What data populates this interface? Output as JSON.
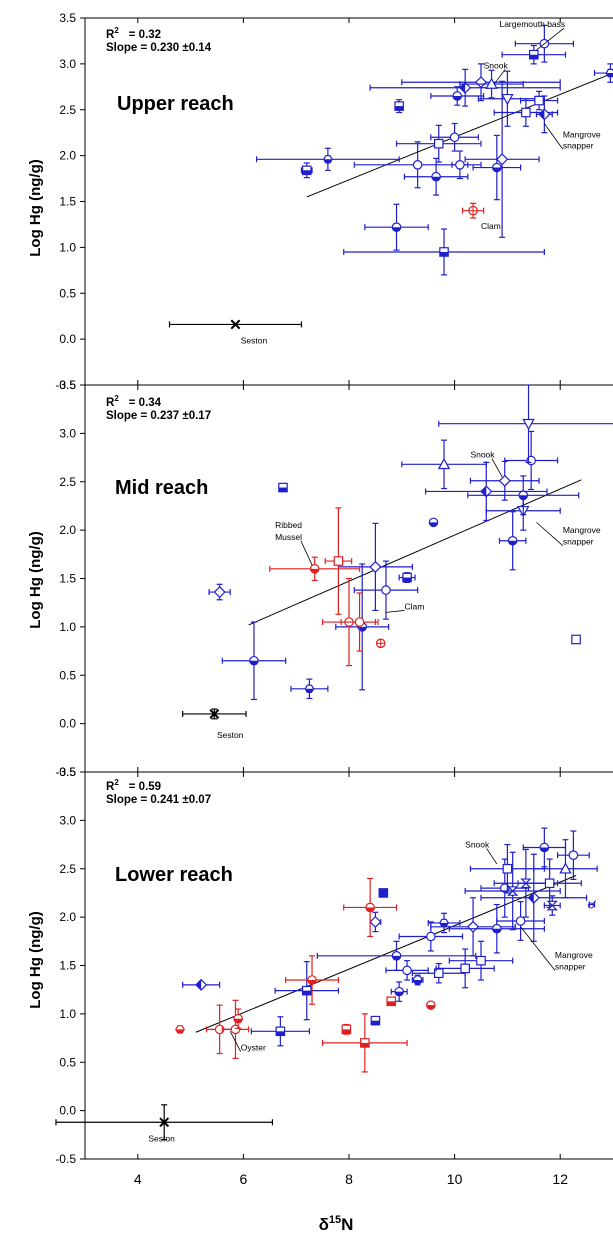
{
  "colors": {
    "fish": "#1f1fcc",
    "invert": "#e02020",
    "seston": "#000000",
    "axis": "#000000"
  },
  "xaxis": {
    "label_main": "δ",
    "label_sup": "15",
    "label_sub": "N",
    "ticks": [
      "4",
      "6",
      "8",
      "10",
      "12"
    ],
    "tick_values": [
      4,
      6,
      8,
      10,
      12
    ],
    "lim": [
      3,
      13
    ]
  },
  "yaxis": {
    "label": "Log Hg (ng/g)",
    "ticks": [
      "-0.5",
      "0.0",
      "0.5",
      "1.0",
      "1.5",
      "2.0",
      "2.5",
      "3.0",
      "3.5"
    ],
    "tick_values": [
      -0.5,
      0,
      0.5,
      1.0,
      1.5,
      2.0,
      2.5,
      3.0,
      3.5
    ],
    "lim": [
      -0.5,
      3.5
    ]
  },
  "chart_data": [
    {
      "type": "scatter",
      "title": "Upper reach",
      "stats": {
        "r2_label": "R",
        "r2_sup": "2",
        "r2_value": "= 0.32",
        "slope": "Slope = 0.230 ±0.14"
      },
      "xlim": [
        3,
        13
      ],
      "ylim": [
        -0.5,
        3.5
      ],
      "regression": {
        "x": [
          7.2,
          13.0
        ],
        "y": [
          1.55,
          2.9
        ]
      },
      "points": [
        {
          "x": 5.85,
          "y": 0.16,
          "xerr": 1.25,
          "yerr": 0,
          "group": "seston",
          "marker": "x"
        },
        {
          "x": 7.2,
          "y": 1.84,
          "xerr": 0.1,
          "yerr": 0.08,
          "group": "fish",
          "marker": "square-half"
        },
        {
          "x": 7.6,
          "y": 1.96,
          "xerr": 1.35,
          "yerr": 0.12,
          "group": "fish",
          "marker": "hex"
        },
        {
          "x": 8.95,
          "y": 2.54,
          "xerr": 0.06,
          "yerr": 0.07,
          "group": "fish",
          "marker": "square-half"
        },
        {
          "x": 9.3,
          "y": 1.9,
          "xerr": 1.2,
          "yerr": 0.25,
          "group": "fish",
          "marker": "circle"
        },
        {
          "x": 8.9,
          "y": 1.22,
          "xerr": 0.6,
          "yerr": 0.25,
          "group": "fish",
          "marker": "circle-half"
        },
        {
          "x": 9.8,
          "y": 0.95,
          "xerr": 1.9,
          "yerr": 0.25,
          "group": "fish",
          "marker": "square-half"
        },
        {
          "x": 9.65,
          "y": 1.77,
          "xerr": 0.6,
          "yerr": 0.2,
          "group": "fish",
          "marker": "circle-half"
        },
        {
          "x": 9.7,
          "y": 2.13,
          "xerr": 0.8,
          "yerr": 0.2,
          "group": "fish",
          "marker": "square"
        },
        {
          "x": 10.0,
          "y": 2.2,
          "xerr": 0.45,
          "yerr": 0.15,
          "group": "fish",
          "marker": "circle"
        },
        {
          "x": 10.1,
          "y": 1.9,
          "xerr": 0.15,
          "yerr": 0.15,
          "group": "fish",
          "marker": "circle"
        },
        {
          "x": 10.05,
          "y": 2.65,
          "xerr": 0.5,
          "yerr": 0.1,
          "group": "fish",
          "marker": "circle-half"
        },
        {
          "x": 10.2,
          "y": 2.74,
          "xerr": 1.8,
          "yerr": 0.2,
          "group": "fish",
          "marker": "diamond-half"
        },
        {
          "x": 10.5,
          "y": 2.8,
          "xerr": 1.5,
          "yerr": 0.2,
          "group": "fish",
          "marker": "diamond"
        },
        {
          "x": 10.7,
          "y": 2.78,
          "xerr": 0.6,
          "yerr": 0.15,
          "group": "fish",
          "marker": "triangle"
        },
        {
          "x": 10.8,
          "y": 1.87,
          "xerr": 0.45,
          "yerr": 0.35,
          "group": "fish",
          "marker": "circle-half"
        },
        {
          "x": 10.9,
          "y": 1.96,
          "xerr": 0.7,
          "yerr": 0.85,
          "group": "fish",
          "marker": "diamond"
        },
        {
          "x": 11.0,
          "y": 2.62,
          "xerr": 0.55,
          "yerr": 0.3,
          "group": "fish",
          "marker": "triangle-down"
        },
        {
          "x": 11.35,
          "y": 2.47,
          "xerr": 0.6,
          "yerr": 0.15,
          "group": "fish",
          "marker": "square"
        },
        {
          "x": 11.6,
          "y": 2.6,
          "xerr": 0.35,
          "yerr": 0.1,
          "group": "fish",
          "marker": "square"
        },
        {
          "x": 11.7,
          "y": 2.45,
          "xerr": 0.15,
          "yerr": 0.2,
          "group": "fish",
          "marker": "diamond-half"
        },
        {
          "x": 11.5,
          "y": 3.1,
          "xerr": 0.6,
          "yerr": 0.1,
          "group": "fish",
          "marker": "square-half"
        },
        {
          "x": 11.7,
          "y": 3.22,
          "xerr": 0.55,
          "yerr": 0.2,
          "group": "fish",
          "marker": "circle"
        },
        {
          "x": 12.95,
          "y": 2.9,
          "xerr": 0.3,
          "yerr": 0.1,
          "group": "fish",
          "marker": "hex"
        },
        {
          "x": 10.35,
          "y": 1.4,
          "xerr": 0.2,
          "yerr": 0.08,
          "group": "invert",
          "marker": "crossed-circle"
        }
      ],
      "annotations": [
        {
          "text": "Largemouth bass",
          "x": 10.85,
          "y": 3.4,
          "to": [
            11.55,
            3.15
          ]
        },
        {
          "text": "Snook",
          "x": 10.55,
          "y": 2.95,
          "to": [
            10.75,
            2.78
          ]
        },
        {
          "text": "Mangrove",
          "x": 12.05,
          "y": 2.2
        },
        {
          "text": "snapper",
          "x": 12.05,
          "y": 2.08,
          "to": [
            11.7,
            2.35
          ]
        },
        {
          "text": "Clam",
          "x": 10.5,
          "y": 1.2
        },
        {
          "text": "Seston",
          "x": 5.95,
          "y": -0.05
        }
      ]
    },
    {
      "type": "scatter",
      "title": "Mid reach",
      "stats": {
        "r2_label": "R",
        "r2_sup": "2",
        "r2_value": "= 0.34",
        "slope": "Slope = 0.237 ±0.17"
      },
      "xlim": [
        3,
        13
      ],
      "ylim": [
        -0.5,
        3.5
      ],
      "regression": {
        "x": [
          6.1,
          12.4
        ],
        "y": [
          1.02,
          2.52
        ]
      },
      "points": [
        {
          "x": 5.45,
          "y": 0.1,
          "xerr": 0.6,
          "yerr": 0.05,
          "group": "seston",
          "marker": "x"
        },
        {
          "x": 6.75,
          "y": 2.44,
          "xerr": 0.05,
          "yerr": 0.03,
          "group": "fish",
          "marker": "square-half"
        },
        {
          "x": 5.55,
          "y": 1.36,
          "xerr": 0.2,
          "yerr": 0.08,
          "group": "fish",
          "marker": "diamond"
        },
        {
          "x": 6.2,
          "y": 0.65,
          "xerr": 0.6,
          "yerr": 0.4,
          "group": "fish",
          "marker": "circle-half"
        },
        {
          "x": 7.25,
          "y": 0.36,
          "xerr": 0.35,
          "yerr": 0.1,
          "group": "fish",
          "marker": "hex"
        },
        {
          "x": 8.25,
          "y": 1.0,
          "xerr": 0.5,
          "yerr": 0.65,
          "group": "fish",
          "marker": "circle-half"
        },
        {
          "x": 8.5,
          "y": 1.62,
          "xerr": 0.7,
          "yerr": 0.45,
          "group": "fish",
          "marker": "diamond"
        },
        {
          "x": 8.7,
          "y": 1.38,
          "xerr": 0.6,
          "yerr": 0.3,
          "group": "fish",
          "marker": "circle"
        },
        {
          "x": 9.1,
          "y": 1.51,
          "xerr": 0.15,
          "yerr": 0.05,
          "group": "fish",
          "marker": "square-half"
        },
        {
          "x": 9.6,
          "y": 2.08,
          "xerr": 0,
          "yerr": 0,
          "group": "fish",
          "marker": "circle-half"
        },
        {
          "x": 9.8,
          "y": 2.68,
          "xerr": 0.8,
          "yerr": 0.25,
          "group": "fish",
          "marker": "triangle"
        },
        {
          "x": 10.6,
          "y": 2.4,
          "xerr": 1.15,
          "yerr": 0.3,
          "group": "fish",
          "marker": "diamond-half"
        },
        {
          "x": 10.95,
          "y": 2.51,
          "xerr": 0.65,
          "yerr": 0.2,
          "group": "fish",
          "marker": "diamond"
        },
        {
          "x": 11.1,
          "y": 1.89,
          "xerr": 0.25,
          "yerr": 0.3,
          "group": "fish",
          "marker": "circle-half"
        },
        {
          "x": 11.3,
          "y": 2.2,
          "xerr": 0.7,
          "yerr": 0.2,
          "group": "fish",
          "marker": "triangle-down"
        },
        {
          "x": 11.3,
          "y": 2.36,
          "xerr": 1.05,
          "yerr": 0.2,
          "group": "fish",
          "marker": "circle-half"
        },
        {
          "x": 11.45,
          "y": 2.72,
          "xerr": 0.5,
          "yerr": 0.3,
          "group": "fish",
          "marker": "circle"
        },
        {
          "x": 11.4,
          "y": 3.1,
          "xerr": 1.7,
          "yerr": 0.4,
          "group": "fish",
          "marker": "triangle-down"
        },
        {
          "x": 12.3,
          "y": 0.87,
          "xerr": 0,
          "yerr": 0,
          "group": "fish",
          "marker": "square"
        },
        {
          "x": 7.35,
          "y": 1.6,
          "xerr": 0.85,
          "yerr": 0.12,
          "group": "invert",
          "marker": "circle-half"
        },
        {
          "x": 7.8,
          "y": 1.68,
          "xerr": 0.25,
          "yerr": 0.55,
          "group": "invert",
          "marker": "square"
        },
        {
          "x": 8.0,
          "y": 1.05,
          "xerr": 0.5,
          "yerr": 0.45,
          "group": "invert",
          "marker": "circle"
        },
        {
          "x": 8.2,
          "y": 1.05,
          "xerr": 0.35,
          "yerr": 0.3,
          "group": "invert",
          "marker": "circle"
        },
        {
          "x": 8.6,
          "y": 0.83,
          "xerr": 0,
          "yerr": 0,
          "group": "invert",
          "marker": "crossed-circle"
        }
      ],
      "annotations": [
        {
          "text": "Snook",
          "x": 10.3,
          "y": 2.75,
          "to": [
            10.9,
            2.55
          ]
        },
        {
          "text": "Mangrove",
          "x": 12.05,
          "y": 1.97
        },
        {
          "text": "snapper",
          "x": 12.05,
          "y": 1.85,
          "to": [
            11.55,
            2.08
          ]
        },
        {
          "text": "Ribbed",
          "x": 6.6,
          "y": 2.02
        },
        {
          "text": "Mussel",
          "x": 6.6,
          "y": 1.9,
          "to": [
            7.3,
            1.64
          ]
        },
        {
          "text": "Clam",
          "x": 9.05,
          "y": 1.18,
          "to": [
            8.7,
            1.15
          ]
        },
        {
          "text": "Seston",
          "x": 5.5,
          "y": -0.15
        }
      ]
    },
    {
      "type": "scatter",
      "title": "Lower reach",
      "stats": {
        "r2_label": "R",
        "r2_sup": "2",
        "r2_value": "= 0.59",
        "slope": "Slope = 0.241 ±0.07"
      },
      "xlim": [
        3,
        13
      ],
      "ylim": [
        -0.5,
        3.5
      ],
      "regression": {
        "x": [
          5.1,
          12.3
        ],
        "y": [
          0.81,
          2.43
        ]
      },
      "points": [
        {
          "x": 4.5,
          "y": -0.12,
          "xerr": 2.05,
          "yerr": 0.18,
          "group": "seston",
          "marker": "x"
        },
        {
          "x": 5.2,
          "y": 1.3,
          "xerr": 0.35,
          "yerr": 0,
          "group": "fish",
          "marker": "diamond-half"
        },
        {
          "x": 6.7,
          "y": 0.82,
          "xerr": 0.55,
          "yerr": 0.15,
          "group": "fish",
          "marker": "square-half"
        },
        {
          "x": 7.2,
          "y": 1.24,
          "xerr": 0.6,
          "yerr": 0.3,
          "group": "fish",
          "marker": "square-half"
        },
        {
          "x": 8.5,
          "y": 0.93,
          "xerr": 0,
          "yerr": 0,
          "group": "fish",
          "marker": "square-half"
        },
        {
          "x": 8.5,
          "y": 1.95,
          "xerr": 0.1,
          "yerr": 0.1,
          "group": "fish",
          "marker": "diamond"
        },
        {
          "x": 8.65,
          "y": 2.25,
          "xerr": 0.05,
          "yerr": 0,
          "group": "fish",
          "marker": "square-full"
        },
        {
          "x": 8.9,
          "y": 1.6,
          "xerr": 1.5,
          "yerr": 0.15,
          "group": "fish",
          "marker": "circle-half"
        },
        {
          "x": 8.95,
          "y": 1.23,
          "xerr": 0.15,
          "yerr": 0.1,
          "group": "fish",
          "marker": "circle-half"
        },
        {
          "x": 9.1,
          "y": 1.45,
          "xerr": 0.4,
          "yerr": 0.1,
          "group": "fish",
          "marker": "circle"
        },
        {
          "x": 9.3,
          "y": 1.35,
          "xerr": 0.1,
          "yerr": 0.05,
          "group": "fish",
          "marker": "circle-half"
        },
        {
          "x": 9.55,
          "y": 1.8,
          "xerr": 0.6,
          "yerr": 0.15,
          "group": "fish",
          "marker": "circle"
        },
        {
          "x": 9.7,
          "y": 1.42,
          "xerr": 0.5,
          "yerr": 0.1,
          "group": "fish",
          "marker": "square"
        },
        {
          "x": 9.8,
          "y": 1.94,
          "xerr": 0.3,
          "yerr": 0.1,
          "group": "fish",
          "marker": "hex"
        },
        {
          "x": 10.2,
          "y": 1.47,
          "xerr": 0.55,
          "yerr": 0.2,
          "group": "fish",
          "marker": "square"
        },
        {
          "x": 10.35,
          "y": 1.9,
          "xerr": 0.8,
          "yerr": 0.3,
          "group": "fish",
          "marker": "diamond"
        },
        {
          "x": 10.5,
          "y": 1.55,
          "xerr": 0.6,
          "yerr": 0.2,
          "group": "fish",
          "marker": "square"
        },
        {
          "x": 10.8,
          "y": 1.88,
          "xerr": 0.9,
          "yerr": 0.25,
          "group": "fish",
          "marker": "circle-half"
        },
        {
          "x": 10.95,
          "y": 2.3,
          "xerr": 0.45,
          "yerr": 0.3,
          "group": "fish",
          "marker": "circle"
        },
        {
          "x": 11.0,
          "y": 2.5,
          "xerr": 0.7,
          "yerr": 0.25,
          "group": "fish",
          "marker": "square"
        },
        {
          "x": 11.1,
          "y": 2.27,
          "xerr": 0.9,
          "yerr": 0.4,
          "group": "fish",
          "marker": "hourglass"
        },
        {
          "x": 11.25,
          "y": 1.96,
          "xerr": 0.45,
          "yerr": 0.2,
          "group": "fish",
          "marker": "circle"
        },
        {
          "x": 11.35,
          "y": 2.35,
          "xerr": 0.6,
          "yerr": 0.35,
          "group": "fish",
          "marker": "hourglass"
        },
        {
          "x": 11.5,
          "y": 2.2,
          "xerr": 1.0,
          "yerr": 0.45,
          "group": "fish",
          "marker": "diamond-half"
        },
        {
          "x": 11.7,
          "y": 2.72,
          "xerr": 0.4,
          "yerr": 0.2,
          "group": "fish",
          "marker": "circle-half"
        },
        {
          "x": 11.8,
          "y": 2.35,
          "xerr": 0.6,
          "yerr": 0.25,
          "group": "fish",
          "marker": "square"
        },
        {
          "x": 11.85,
          "y": 2.12,
          "xerr": 0.15,
          "yerr": 0.1,
          "group": "fish",
          "marker": "hourglass"
        },
        {
          "x": 12.1,
          "y": 2.5,
          "xerr": 0.6,
          "yerr": 0.3,
          "group": "fish",
          "marker": "triangle"
        },
        {
          "x": 12.25,
          "y": 2.64,
          "xerr": 0.3,
          "yerr": 0.25,
          "group": "fish",
          "marker": "circle"
        },
        {
          "x": 12.6,
          "y": 2.13,
          "xerr": 0.05,
          "yerr": 0,
          "group": "fish",
          "marker": "male"
        },
        {
          "x": 4.8,
          "y": 0.84,
          "xerr": 0,
          "yerr": 0,
          "group": "invert",
          "marker": "hex"
        },
        {
          "x": 5.55,
          "y": 0.84,
          "xerr": 0.25,
          "yerr": 0.25,
          "group": "invert",
          "marker": "circle"
        },
        {
          "x": 5.85,
          "y": 0.84,
          "xerr": 0.25,
          "yerr": 0.3,
          "group": "invert",
          "marker": "circle"
        },
        {
          "x": 5.9,
          "y": 0.95,
          "xerr": 0,
          "yerr": 0.1,
          "group": "invert",
          "marker": "circle-half"
        },
        {
          "x": 7.3,
          "y": 1.35,
          "xerr": 0.5,
          "yerr": 0.25,
          "group": "invert",
          "marker": "circle-half"
        },
        {
          "x": 7.95,
          "y": 0.84,
          "xerr": 0.05,
          "yerr": 0.05,
          "group": "invert",
          "marker": "square-half"
        },
        {
          "x": 8.3,
          "y": 0.7,
          "xerr": 0.8,
          "yerr": 0.3,
          "group": "invert",
          "marker": "square-half"
        },
        {
          "x": 8.4,
          "y": 2.1,
          "xerr": 0.5,
          "yerr": 0.3,
          "group": "invert",
          "marker": "circle-half"
        },
        {
          "x": 8.8,
          "y": 1.13,
          "xerr": 0.05,
          "yerr": 0,
          "group": "invert",
          "marker": "square-half"
        },
        {
          "x": 9.55,
          "y": 1.09,
          "xerr": 0,
          "yerr": 0,
          "group": "invert",
          "marker": "circle-half"
        }
      ],
      "annotations": [
        {
          "text": "Snook",
          "x": 10.2,
          "y": 2.72,
          "to": [
            10.8,
            2.55
          ]
        },
        {
          "text": "Mangrove",
          "x": 11.9,
          "y": 1.58
        },
        {
          "text": "snapper",
          "x": 11.9,
          "y": 1.46,
          "to": [
            11.25,
            1.9
          ]
        },
        {
          "text": "Oyster",
          "x": 5.95,
          "y": 0.62,
          "to": [
            5.75,
            0.82
          ]
        },
        {
          "text": "Seston",
          "x": 4.2,
          "y": -0.32
        }
      ]
    }
  ]
}
